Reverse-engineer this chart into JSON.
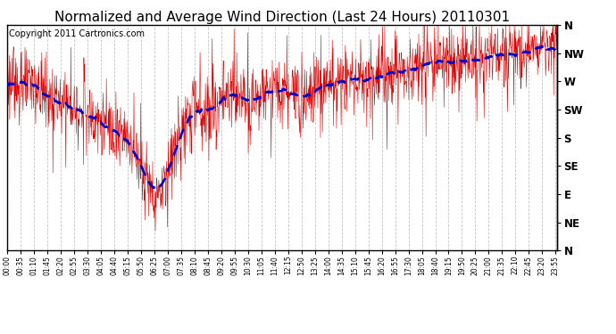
{
  "title": "Normalized and Average Wind Direction (Last 24 Hours) 20110301",
  "copyright": "Copyright 2011 Cartronics.com",
  "y_labels": [
    "N",
    "NW",
    "W",
    "SW",
    "S",
    "SE",
    "E",
    "NE",
    "N"
  ],
  "y_values": [
    360,
    315,
    270,
    225,
    180,
    135,
    90,
    45,
    0
  ],
  "y_min": 0,
  "y_max": 360,
  "background_color": "#ffffff",
  "plot_bg_color": "#ffffff",
  "grid_color": "#aaaaaa",
  "raw_line_color": "#dd0000",
  "avg_line_color": "#0000cc",
  "title_fontsize": 11,
  "copyright_fontsize": 7,
  "tick_interval_minutes": 35,
  "n_points": 1440
}
